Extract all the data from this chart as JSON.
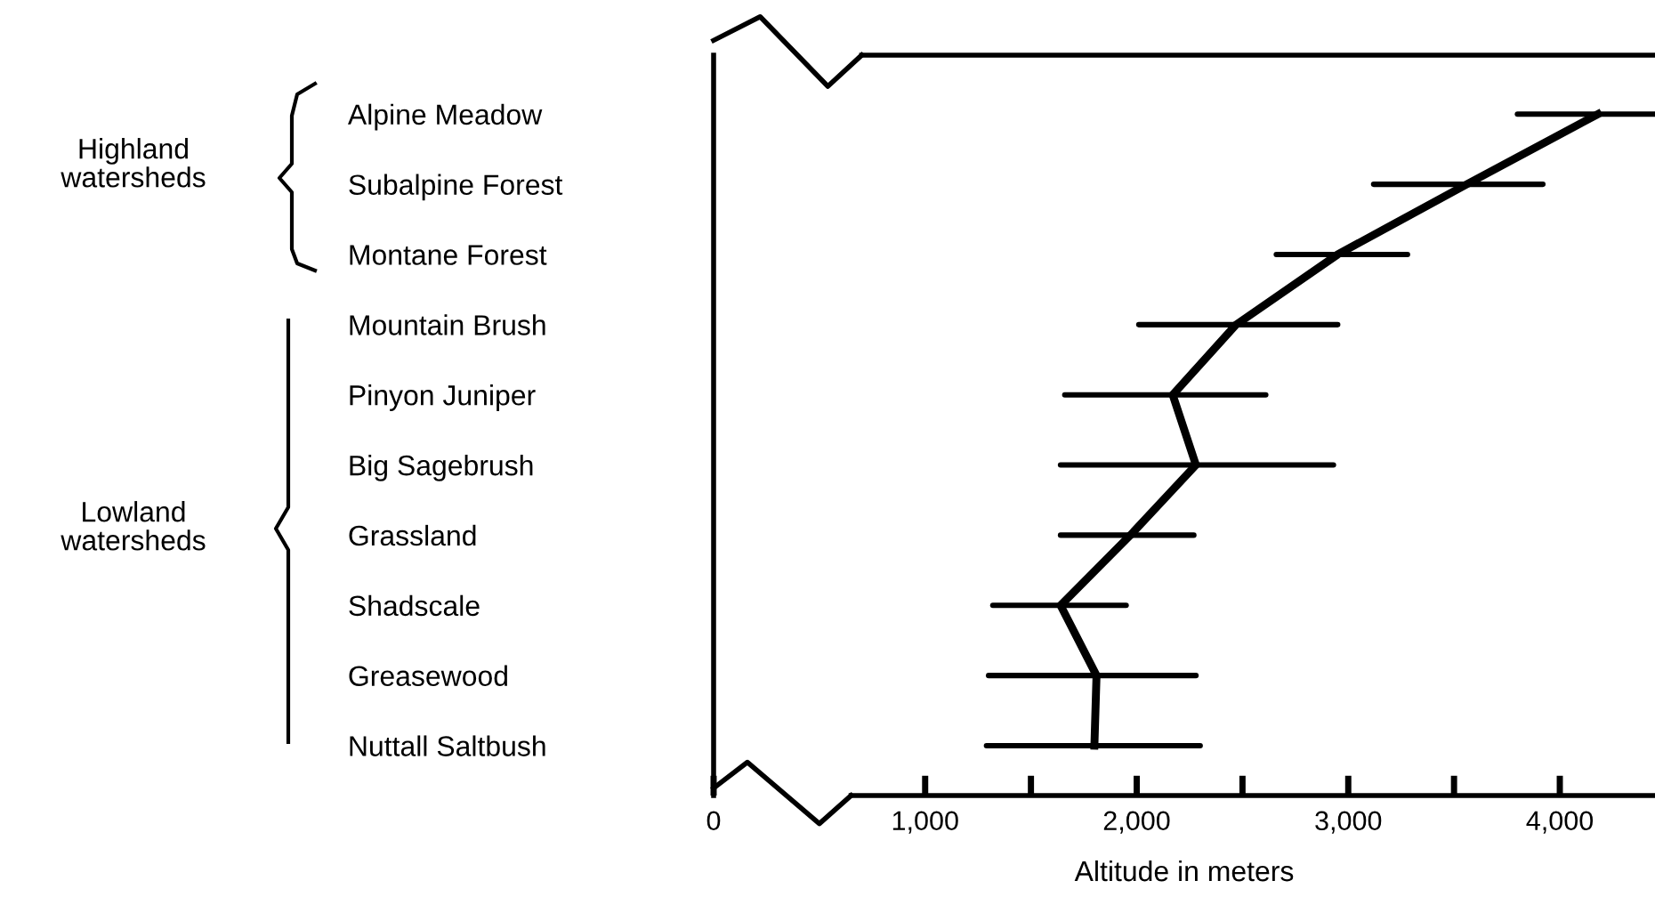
{
  "chart_data": {
    "type": "line",
    "orientation": "horizontal",
    "categories": [
      "Alpine Meadow",
      "Subalpine Forest",
      "Montane Forest",
      "Mountain Brush",
      "Pinyon Juniper",
      "Big Sagebrush",
      "Grassland",
      "Shadscale",
      "Greasewood",
      "Nuttall Saltbush"
    ],
    "values": [
      4180,
      3560,
      2950,
      2470,
      2170,
      2280,
      1970,
      1640,
      1810,
      1800
    ],
    "errors": [
      [
        3800,
        4450
      ],
      [
        3120,
        3920
      ],
      [
        2660,
        3280
      ],
      [
        2010,
        2950
      ],
      [
        1660,
        2610
      ],
      [
        1640,
        2930
      ],
      [
        1640,
        2270
      ],
      [
        1320,
        1950
      ],
      [
        1300,
        2280
      ],
      [
        1290,
        2300
      ]
    ],
    "color": "#000000",
    "marker": "none",
    "line_style": "solid",
    "xlabel": "Altitude in meters",
    "xlim": [
      0,
      4450
    ],
    "xticks": [
      0,
      {
        "value": 1000,
        "label": "1,000"
      },
      {
        "value": 1500,
        "label": null
      },
      {
        "value": 2000,
        "label": "2,000"
      },
      {
        "value": 2500,
        "label": null
      },
      {
        "value": 3000,
        "label": "3,000"
      },
      {
        "value": 3500,
        "label": null
      },
      {
        "value": 4000,
        "label": "4,000"
      }
    ],
    "annotations": [
      "Highland\nwatersheds",
      "Lowland\nwatersheds"
    ],
    "grid": false
  }
}
